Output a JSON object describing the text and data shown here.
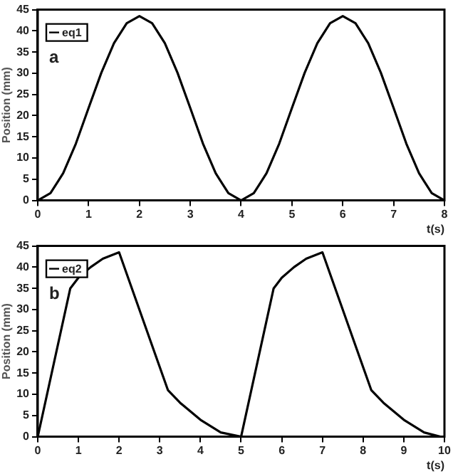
{
  "chart_data": [
    {
      "type": "line",
      "xlabel": "t(s)",
      "ylabel": "Position (mm)",
      "annotations": [
        "a"
      ],
      "legend": "top left",
      "grid": false,
      "marker": "none",
      "line_style": "solid",
      "xlim": [
        0,
        8
      ],
      "xticks": [
        0,
        1,
        2,
        3,
        4,
        5,
        6,
        7,
        8
      ],
      "ylim": [
        0,
        45
      ],
      "yticks": [
        0,
        5,
        10,
        15,
        20,
        25,
        30,
        35,
        40,
        45
      ],
      "series": [
        {
          "name": "eq1",
          "color": "#000000",
          "x": [
            0,
            0.25,
            0.5,
            0.75,
            1,
            1.25,
            1.5,
            1.75,
            2,
            2.25,
            2.5,
            2.75,
            3,
            3.25,
            3.5,
            3.75,
            4,
            4.25,
            4.5,
            4.75,
            5,
            5.25,
            5.5,
            5.75,
            6,
            6.25,
            6.5,
            6.75,
            7,
            7.25,
            7.5,
            7.75,
            8
          ],
          "values": [
            0,
            1.7,
            6.4,
            13.4,
            21.8,
            30.1,
            37.1,
            41.8,
            43.5,
            41.8,
            37.1,
            30.1,
            21.8,
            13.4,
            6.4,
            1.7,
            0,
            1.7,
            6.4,
            13.4,
            21.8,
            30.1,
            37.1,
            41.8,
            43.5,
            41.8,
            37.1,
            30.1,
            21.8,
            13.4,
            6.4,
            1.7,
            0
          ]
        }
      ]
    },
    {
      "type": "line",
      "xlabel": "t(s)",
      "ylabel": "Position (mm)",
      "annotations": [
        "b"
      ],
      "legend": "top left",
      "grid": false,
      "marker": "none",
      "line_style": "solid",
      "xlim": [
        0,
        10
      ],
      "xticks": [
        0,
        1,
        2,
        3,
        4,
        5,
        6,
        7,
        8,
        9,
        10
      ],
      "ylim": [
        0,
        45
      ],
      "yticks": [
        0,
        5,
        10,
        15,
        20,
        25,
        30,
        35,
        40,
        45
      ],
      "series": [
        {
          "name": "eq2",
          "color": "#000000",
          "x": [
            0,
            0.8,
            1,
            1.3,
            1.6,
            2,
            3.2,
            3.5,
            4,
            4.5,
            5,
            5.8,
            6,
            6.3,
            6.6,
            7,
            8.2,
            8.5,
            9,
            9.5,
            9.9,
            10
          ],
          "values": [
            0,
            35,
            37.5,
            40,
            42,
            43.5,
            11,
            8,
            4,
            1,
            0,
            35,
            37.5,
            40,
            42,
            43.5,
            11,
            8,
            4,
            1,
            0,
            0
          ]
        }
      ]
    }
  ]
}
